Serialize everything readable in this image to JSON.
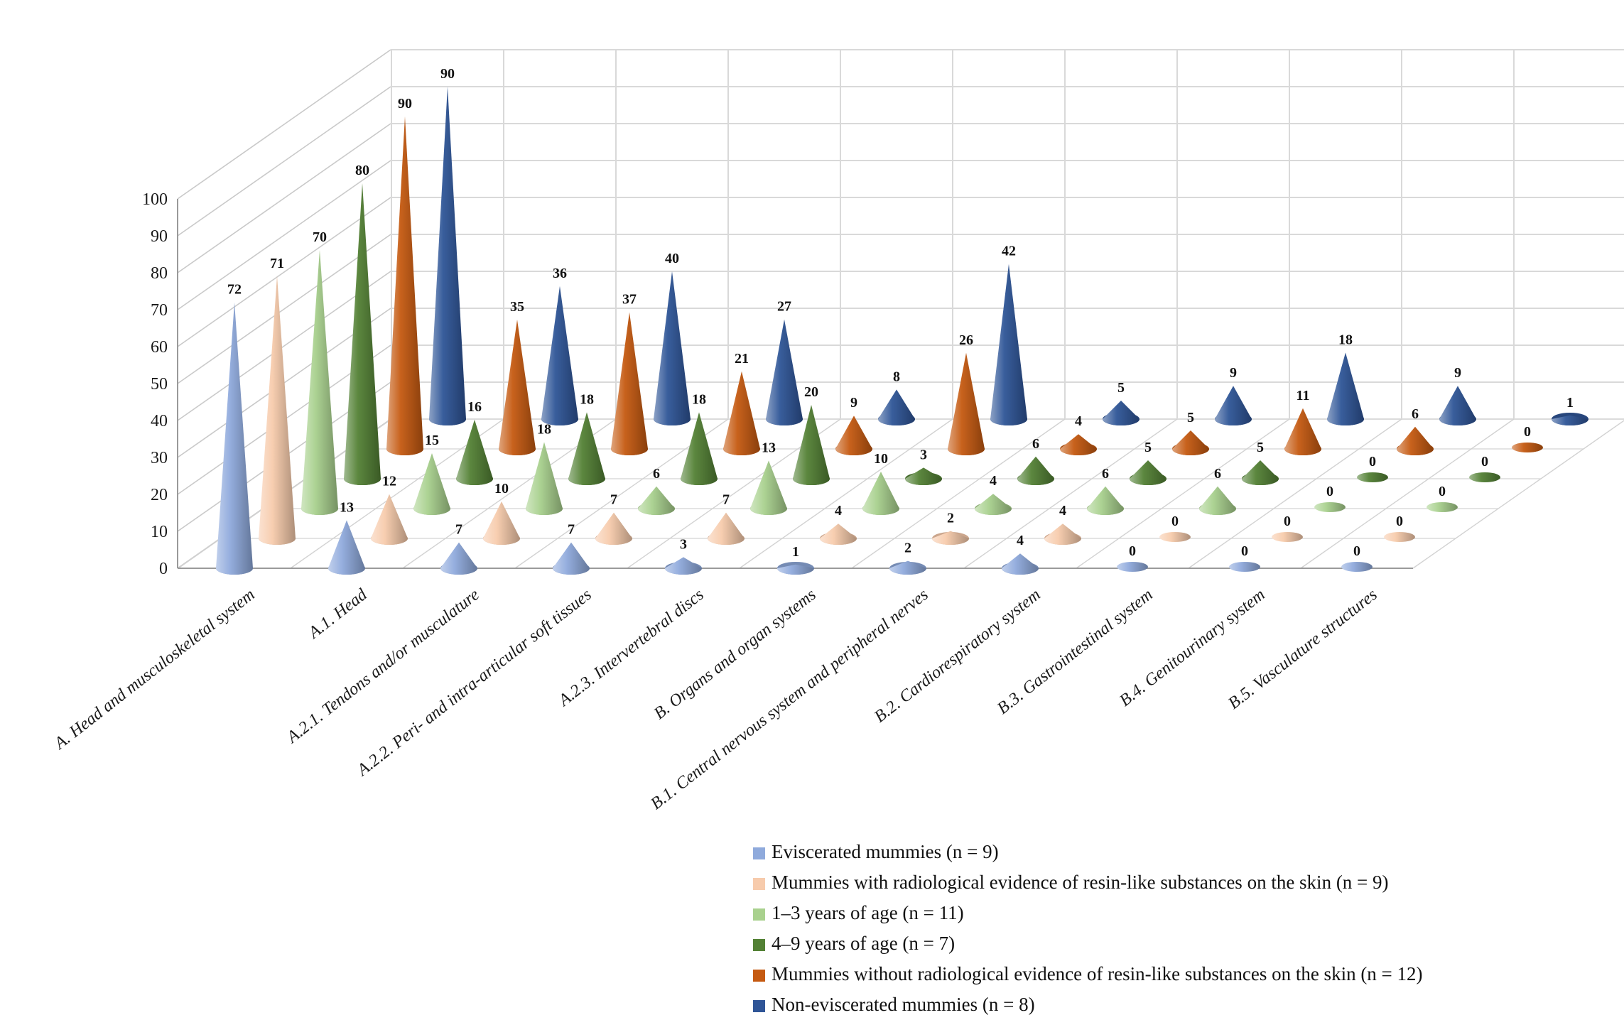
{
  "chart_data": {
    "type": "bar",
    "subtype": "3d-cone",
    "title": "",
    "xlabel": "",
    "ylabel": "",
    "background": "#FFFFFF",
    "grid": true,
    "legend_position": "bottom-right",
    "y_axis": {
      "min": 0,
      "max": 100,
      "step": 10,
      "ticks": [
        "0",
        "10",
        "20",
        "30",
        "40",
        "50",
        "60",
        "70",
        "80",
        "90",
        "100"
      ]
    },
    "categories": [
      "A. Head and musculoskeletal system",
      "A.1. Head",
      "A.2.1. Tendons and/or musculature",
      "A.2.2. Peri- and intra-articular soft tissues",
      "A.2.3. Intervertebral discs",
      "B. Organs and organ systems",
      "B.1. Central nervous system and peripheral nerves",
      "B.2. Cardiorespiratory system",
      "B.3. Gastrointestinal system",
      "B.4. Genitourinary system",
      "B.5. Vasculature structures"
    ],
    "series": [
      {
        "name": "Eviscerated mummies (n = 9)",
        "color": "#8FAADC",
        "values": [
          72,
          13,
          7,
          7,
          3,
          1,
          2,
          4,
          0,
          0,
          0
        ]
      },
      {
        "name": "Mummies with radiological evidence of resin-like substances on the skin (n = 9)",
        "color": "#F7CBAC",
        "values": [
          71,
          12,
          10,
          7,
          7,
          4,
          2,
          4,
          0,
          0,
          0
        ]
      },
      {
        "name": "1–3 years of age (n = 11)",
        "color": "#A9D18E",
        "values": [
          70,
          15,
          18,
          6,
          13,
          10,
          4,
          6,
          6,
          0,
          0
        ]
      },
      {
        "name": "4–9 years of age (n = 7)",
        "color": "#538135",
        "values": [
          80,
          16,
          18,
          18,
          20,
          3,
          6,
          5,
          5,
          0,
          0
        ]
      },
      {
        "name": "Mummies without radiological evidence of resin-like substances on the skin (n = 12)",
        "color": "#C55A11",
        "values": [
          90,
          35,
          37,
          21,
          9,
          26,
          4,
          5,
          11,
          6,
          0
        ]
      },
      {
        "name": "Non-eviscerated mummies (n = 8)",
        "color": "#2F5597",
        "values": [
          90,
          36,
          40,
          27,
          8,
          42,
          5,
          9,
          18,
          9,
          1
        ]
      }
    ],
    "value_labels": true
  }
}
